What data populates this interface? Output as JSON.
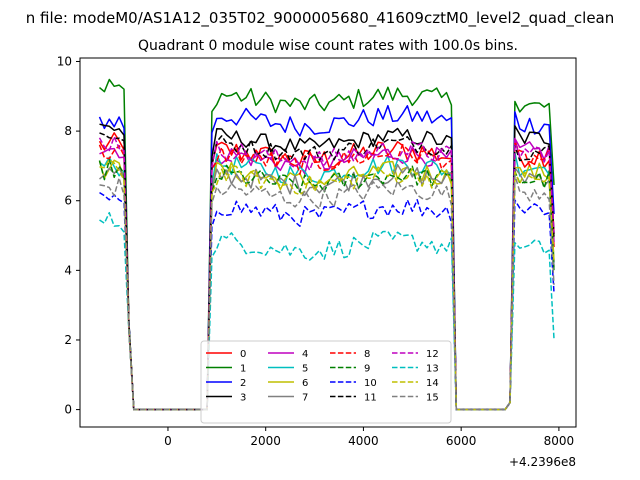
{
  "figure": {
    "suptitle": "n file: modeM0/AS1A12_035T02_9000005680_41609cztM0_level2_quad_clean",
    "title": "Quadrant 0 module wise count rates with 100.0s bins.",
    "offset_text": "+4.2396e8"
  },
  "chart_data": {
    "type": "line",
    "title": "Quadrant 0 module wise count rates with 100.0s bins.",
    "xlabel": "",
    "ylabel": "",
    "x_offset": 423960000,
    "xlim": [
      -1800,
      8350
    ],
    "ylim": [
      -0.5,
      10.1
    ],
    "x_ticks": [
      0,
      2000,
      4000,
      6000,
      8000
    ],
    "x_tick_labels": [
      "0",
      "2000",
      "4000",
      "6000",
      "8000"
    ],
    "y_ticks": [
      0,
      2,
      4,
      6,
      8,
      10
    ],
    "y_tick_labels": [
      "0",
      "2",
      "4",
      "6",
      "8",
      "10"
    ],
    "grid": false,
    "legend_position": "lower center",
    "segments": [
      {
        "x_start": -1400,
        "x_end": -800,
        "falls_to_zero_at": -800
      },
      {
        "x_start": 900,
        "x_end": 5800,
        "rises_from_zero_at": 800,
        "falls_to_zero_at": 5900
      },
      {
        "x_start": 7100,
        "x_end": 7900,
        "rises_from_zero_at": 7000
      }
    ],
    "series": [
      {
        "name": "0",
        "color": "#ff0000",
        "dash": "solid",
        "level_a": 7.6,
        "level_b": 7.3,
        "level_c": 7.3,
        "amp": 0.35
      },
      {
        "name": "1",
        "color": "#008000",
        "dash": "solid",
        "level_a": 9.3,
        "level_b": 8.9,
        "level_c": 8.7,
        "amp": 0.3
      },
      {
        "name": "2",
        "color": "#0000ff",
        "dash": "solid",
        "level_a": 8.3,
        "level_b": 8.3,
        "level_c": 8.2,
        "amp": 0.3
      },
      {
        "name": "3",
        "color": "#000000",
        "dash": "solid",
        "level_a": 8.1,
        "level_b": 7.7,
        "level_c": 7.8,
        "amp": 0.25
      },
      {
        "name": "4",
        "color": "#bf00bf",
        "dash": "solid",
        "level_a": 7.5,
        "level_b": 7.2,
        "level_c": 7.4,
        "amp": 0.3
      },
      {
        "name": "5",
        "color": "#00bfbf",
        "dash": "solid",
        "level_a": 7.0,
        "level_b": 6.9,
        "level_c": 7.0,
        "amp": 0.3
      },
      {
        "name": "6",
        "color": "#bfbf00",
        "dash": "solid",
        "level_a": 6.9,
        "level_b": 6.7,
        "level_c": 6.8,
        "amp": 0.3
      },
      {
        "name": "7",
        "color": "#808080",
        "dash": "solid",
        "level_a": 6.8,
        "level_b": 6.6,
        "level_c": 6.7,
        "amp": 0.3
      },
      {
        "name": "8",
        "color": "#ff0000",
        "dash": "dashed",
        "level_a": 7.4,
        "level_b": 7.2,
        "level_c": 7.2,
        "amp": 0.3
      },
      {
        "name": "9",
        "color": "#008000",
        "dash": "dashed",
        "level_a": 6.9,
        "level_b": 6.6,
        "level_c": 6.6,
        "amp": 0.3
      },
      {
        "name": "10",
        "color": "#0000ff",
        "dash": "dashed",
        "level_a": 6.0,
        "level_b": 5.7,
        "level_c": 5.8,
        "amp": 0.3
      },
      {
        "name": "11",
        "color": "#000000",
        "dash": "dashed",
        "level_a": 7.9,
        "level_b": 7.5,
        "level_c": 7.4,
        "amp": 0.25
      },
      {
        "name": "12",
        "color": "#bf00bf",
        "dash": "dashed",
        "level_a": 7.7,
        "level_b": 7.3,
        "level_c": 7.4,
        "amp": 0.3
      },
      {
        "name": "13",
        "color": "#00bfbf",
        "dash": "dashed",
        "level_a": 5.4,
        "level_b": 4.7,
        "level_c": 4.6,
        "amp": 0.3
      },
      {
        "name": "14",
        "color": "#bfbf00",
        "dash": "dashed",
        "level_a": 6.9,
        "level_b": 6.6,
        "level_c": 6.6,
        "amp": 0.3
      },
      {
        "name": "15",
        "color": "#808080",
        "dash": "dashed",
        "level_a": 6.4,
        "level_b": 6.2,
        "level_c": 6.3,
        "amp": 0.3
      }
    ]
  }
}
